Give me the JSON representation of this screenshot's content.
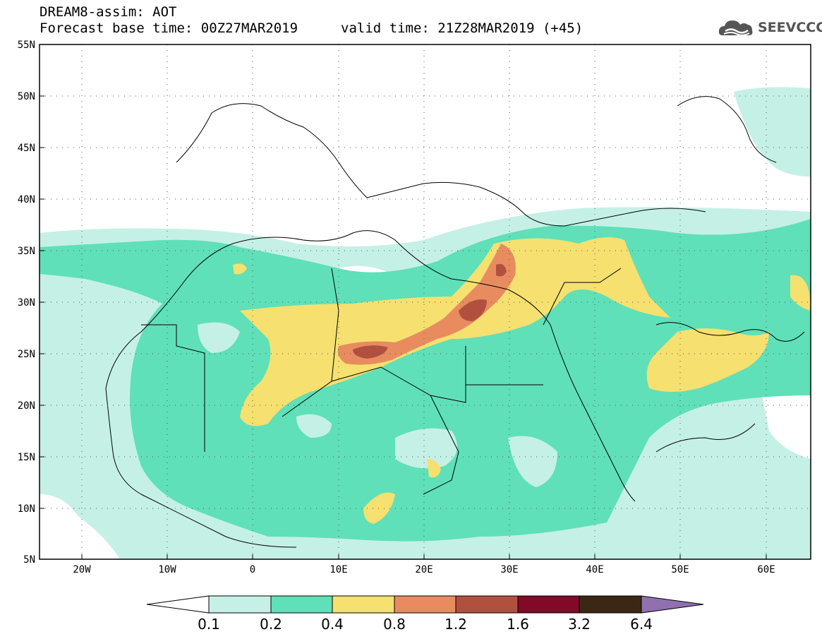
{
  "header": {
    "line1": "DREAM8-assim: AOT",
    "line2": "Forecast base time: 00Z27MAR2019",
    "valid": "valid time: 21Z28MAR2019 (+45)"
  },
  "logo": {
    "text": "SEEVCCC",
    "icon": "cloud-icon"
  },
  "map": {
    "lat_labels": [
      "55N",
      "50N",
      "45N",
      "40N",
      "35N",
      "30N",
      "25N",
      "20N",
      "15N",
      "10N",
      "5N"
    ],
    "lon_labels": [
      "20W",
      "10W",
      "0",
      "10E",
      "20E",
      "30E",
      "40E",
      "50E",
      "60E"
    ],
    "lat_range": [
      5,
      55
    ],
    "lon_range": [
      -25,
      65
    ],
    "gridlines": "dotted"
  },
  "colorbar": {
    "labels": [
      "0.1",
      "0.2",
      "0.4",
      "0.8",
      "1.2",
      "1.6",
      "3.2",
      "6.4"
    ],
    "colors": [
      "#c5f0e6",
      "#5fe0b8",
      "#f5e070",
      "#e88c60",
      "#b25040",
      "#800a28",
      "#3a2814",
      "#9070b0"
    ],
    "low_end_color": "#ffffff"
  }
}
